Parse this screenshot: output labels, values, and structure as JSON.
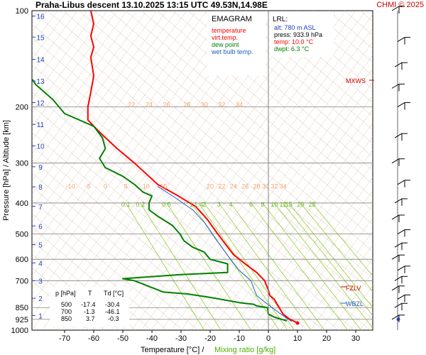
{
  "header": {
    "title": "Praha-Libus  descent  13.10.2025 13:15 UTC  49.53N,14.98E",
    "copyright": "CHMI © 2025"
  },
  "legend": {
    "title": "EMAGRAM",
    "items": [
      {
        "label": "temperature",
        "color": "#ff0000"
      },
      {
        "label": "virt.temp.",
        "color": "#ff0000"
      },
      {
        "label": "dew point",
        "color": "#008000"
      },
      {
        "label": "wet bulb temp.",
        "color": "#1f5fbf"
      }
    ]
  },
  "lrl": {
    "title": "LRL:",
    "alt": "alt: 780 m ASL",
    "press": "press: 933.9 hPa",
    "temp": "temp: 10.0 °C",
    "dwpt": "dwpt: 6.3 °C"
  },
  "levels_table": {
    "headers": [
      "p [hPa]",
      "T",
      "Td [°C]"
    ],
    "rows": [
      [
        "500",
        "-17.4",
        "-30.4"
      ],
      [
        "700",
        "-1.3",
        "-46.1"
      ],
      [
        "850",
        "3.7",
        "-0.3"
      ]
    ]
  },
  "markers": {
    "mxws": "MXWS",
    "fzlv": "FZLV",
    "wbzl": "WBZL"
  },
  "axis_titles": {
    "y": "Pressure [hPa]  /  Altitude [km]",
    "x_temp": "Temperature [°C]  /",
    "x_mix": "Mixing ratio [g/kg]"
  },
  "chart_data": {
    "type": "line",
    "pressure_ticks": [
      100,
      200,
      300,
      400,
      500,
      600,
      700,
      850,
      925,
      1000
    ],
    "temp_ticks": [
      -70,
      -60,
      -50,
      -40,
      -30,
      -20,
      -10,
      0,
      10,
      20,
      30
    ],
    "altitude_ticks": [
      1,
      2,
      3,
      4,
      5,
      6,
      7,
      8,
      9,
      10,
      11,
      12,
      13,
      14,
      15,
      16
    ],
    "altitude_pressure": [
      900,
      795,
      700,
      616,
      540,
      472,
      410,
      356,
      308,
      265,
      227,
      194,
      166,
      142,
      121,
      104
    ],
    "isotherm_labels_upper": {
      "labels": [
        "22",
        "24",
        "26",
        "28",
        "30",
        "32",
        "34"
      ],
      "x": [
        -47,
        -41,
        -35,
        -28,
        -22,
        -16,
        -10
      ],
      "p": 200
    },
    "isotherm_labels_mid": {
      "labels": [
        "-10",
        "-5",
        "0",
        "5",
        "10",
        "15",
        "20",
        "22",
        "24",
        "26",
        "28",
        "30",
        "32",
        "34"
      ],
      "x": [
        -68,
        -62,
        -56,
        -49,
        -42,
        -36,
        -20,
        -16,
        -12,
        -8,
        -4,
        -1,
        2,
        5
      ],
      "p": 360
    },
    "mixing_ratio_labels": {
      "labels": [
        "0.1",
        "0.2",
        "0.5",
        "1",
        "1.4",
        "2",
        "3",
        "4",
        "6",
        "8",
        "10",
        "12",
        "15",
        "20",
        "25"
      ],
      "x": [
        -49,
        -44,
        -35,
        -26.5,
        -24,
        -22,
        -17,
        -13,
        -6,
        -2,
        2,
        5,
        7,
        11,
        15
      ],
      "p": 410
    },
    "series": [
      {
        "name": "temperature",
        "color": "#ff0000",
        "points": [
          [
            10,
            950
          ],
          [
            7,
            920
          ],
          [
            5,
            890
          ],
          [
            3.7,
            850
          ],
          [
            2,
            800
          ],
          [
            0.5,
            780
          ],
          [
            0,
            750
          ],
          [
            -1.3,
            700
          ],
          [
            -4,
            660
          ],
          [
            -8,
            620
          ],
          [
            -12,
            580
          ],
          [
            -17.4,
            500
          ],
          [
            -21,
            450
          ],
          [
            -25,
            410
          ],
          [
            -31,
            380
          ],
          [
            -38,
            350
          ],
          [
            -46,
            300
          ],
          [
            -52,
            270
          ],
          [
            -58,
            240
          ],
          [
            -62,
            220
          ],
          [
            -62,
            200
          ],
          [
            -61,
            180
          ],
          [
            -60,
            160
          ],
          [
            -61,
            140
          ],
          [
            -60,
            130
          ],
          [
            -61,
            120
          ],
          [
            -60,
            110
          ],
          [
            -61,
            100
          ]
        ]
      },
      {
        "name": "dew point",
        "color": "#008000",
        "points": [
          [
            6.3,
            935
          ],
          [
            2,
            910
          ],
          [
            0,
            890
          ],
          [
            -0.3,
            850
          ],
          [
            -4,
            840
          ],
          [
            -5,
            830
          ],
          [
            -10,
            820
          ],
          [
            -20,
            790
          ],
          [
            -28,
            770
          ],
          [
            -36,
            760
          ],
          [
            -46.1,
            700
          ],
          [
            -50,
            690
          ],
          [
            -40,
            680
          ],
          [
            -30,
            670
          ],
          [
            -14,
            660
          ],
          [
            -14,
            620
          ],
          [
            -20,
            600
          ],
          [
            -22,
            570
          ],
          [
            -26,
            550
          ],
          [
            -29,
            525
          ],
          [
            -30.4,
            500
          ],
          [
            -33,
            470
          ],
          [
            -38,
            440
          ],
          [
            -41,
            420
          ],
          [
            -41,
            400
          ],
          [
            -40,
            380
          ],
          [
            -43,
            370
          ],
          [
            -46,
            350
          ],
          [
            -50,
            330
          ],
          [
            -56,
            310
          ],
          [
            -58,
            290
          ],
          [
            -56,
            270
          ],
          [
            -57,
            250
          ],
          [
            -60,
            230
          ],
          [
            -70,
            210
          ],
          [
            -74,
            190
          ],
          [
            -80,
            170
          ],
          [
            -83,
            155
          ],
          [
            -86,
            140
          ]
        ]
      },
      {
        "name": "wet bulb temp.",
        "color": "#1f5fbf",
        "points": [
          [
            8,
            940
          ],
          [
            5,
            900
          ],
          [
            2,
            860
          ],
          [
            -1,
            820
          ],
          [
            -4,
            780
          ],
          [
            -5,
            740
          ],
          [
            -6,
            700
          ],
          [
            -10,
            650
          ],
          [
            -13,
            600
          ],
          [
            -18,
            520
          ],
          [
            -22,
            460
          ],
          [
            -26,
            420
          ],
          [
            -32,
            385
          ],
          [
            -38,
            355
          ]
        ]
      }
    ],
    "wind_pressures": [
      925,
      850,
      800,
      750,
      700,
      650,
      600,
      550,
      500,
      450,
      400,
      350,
      300,
      250,
      200,
      175,
      150,
      125,
      100
    ],
    "ylim": [
      1000,
      100
    ],
    "xlim": [
      -80,
      35
    ],
    "ylabel": "Pressure [hPa]  /  Altitude [km]",
    "xlabel": "Temperature [°C]  /  Mixing ratio [g/kg]"
  }
}
